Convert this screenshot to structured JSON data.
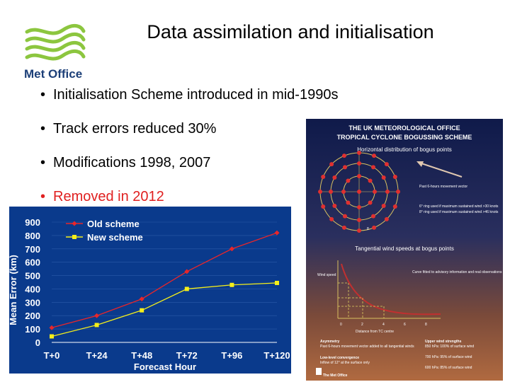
{
  "slide": {
    "title": "Data assimilation and initialisation",
    "logo_text": "Met Office",
    "bullets": [
      {
        "text": "Initialisation Scheme introduced in mid-1990s",
        "highlight": false
      },
      {
        "text": "Track errors reduced 30%",
        "highlight": false
      },
      {
        "text": "Modifications 1998, 2007",
        "highlight": false
      },
      {
        "text": "Removed in 2012",
        "highlight": true
      }
    ],
    "colors": {
      "logo_green": "#8cc63f",
      "logo_blue": "#1c3f78",
      "highlight": "#e02020"
    }
  },
  "chart_data": {
    "type": "line",
    "title": "",
    "xlabel": "Forecast Hour",
    "ylabel": "Mean Error (km)",
    "categories": [
      "T+0",
      "T+24",
      "T+48",
      "T+72",
      "T+96",
      "T+120"
    ],
    "ylim": [
      0,
      900
    ],
    "yticks": [
      0,
      100,
      200,
      300,
      400,
      500,
      600,
      700,
      800,
      900
    ],
    "legend_position": "top-left",
    "background": "#0a3a8c",
    "series": [
      {
        "name": "Old scheme",
        "color": "#e8262a",
        "marker": "diamond",
        "values": [
          110,
          200,
          325,
          530,
          700,
          820
        ]
      },
      {
        "name": "New scheme",
        "color": "#f5ef1a",
        "marker": "square",
        "values": [
          45,
          130,
          240,
          400,
          430,
          445
        ]
      }
    ]
  },
  "poster": {
    "title_line1": "THE UK METEOROLOGICAL OFFICE",
    "title_line2": "TROPICAL CYCLONE BOGUSSING SCHEME",
    "panel1_heading": "Horizontal distribution of bogus points",
    "motion_label": "Past 6-hours movement vector",
    "ring_note1": "6° ring used if maximum sustained wind >30 knots",
    "ring_note2": "8° ring used if maximum sustained wind >46 knots",
    "ring_mark": "8",
    "panel2_heading": "Tangential wind speeds at bogus points",
    "wind_axis": "Wind speed",
    "curve_note": "Curve fitted to advisory information and real observations",
    "distance_axis": "Distance from TC centre",
    "distance_ticks": [
      "0",
      "2",
      "4",
      "6",
      "8"
    ],
    "asym_heading": "Asymmetry",
    "asym_text": "Past 6-hours movement vector added to all tangential winds",
    "conv_heading": "Low-level convergence",
    "conv_text": "Inflow of 12° at the surface only",
    "upper_heading": "Upper wind strengths",
    "upper1": "850 hPa: 100% of surface wind",
    "upper2": "700 hPa: 95% of surface wind",
    "upper3": "600 hPa: 85% of surface wind",
    "footer": "The Met Office"
  }
}
